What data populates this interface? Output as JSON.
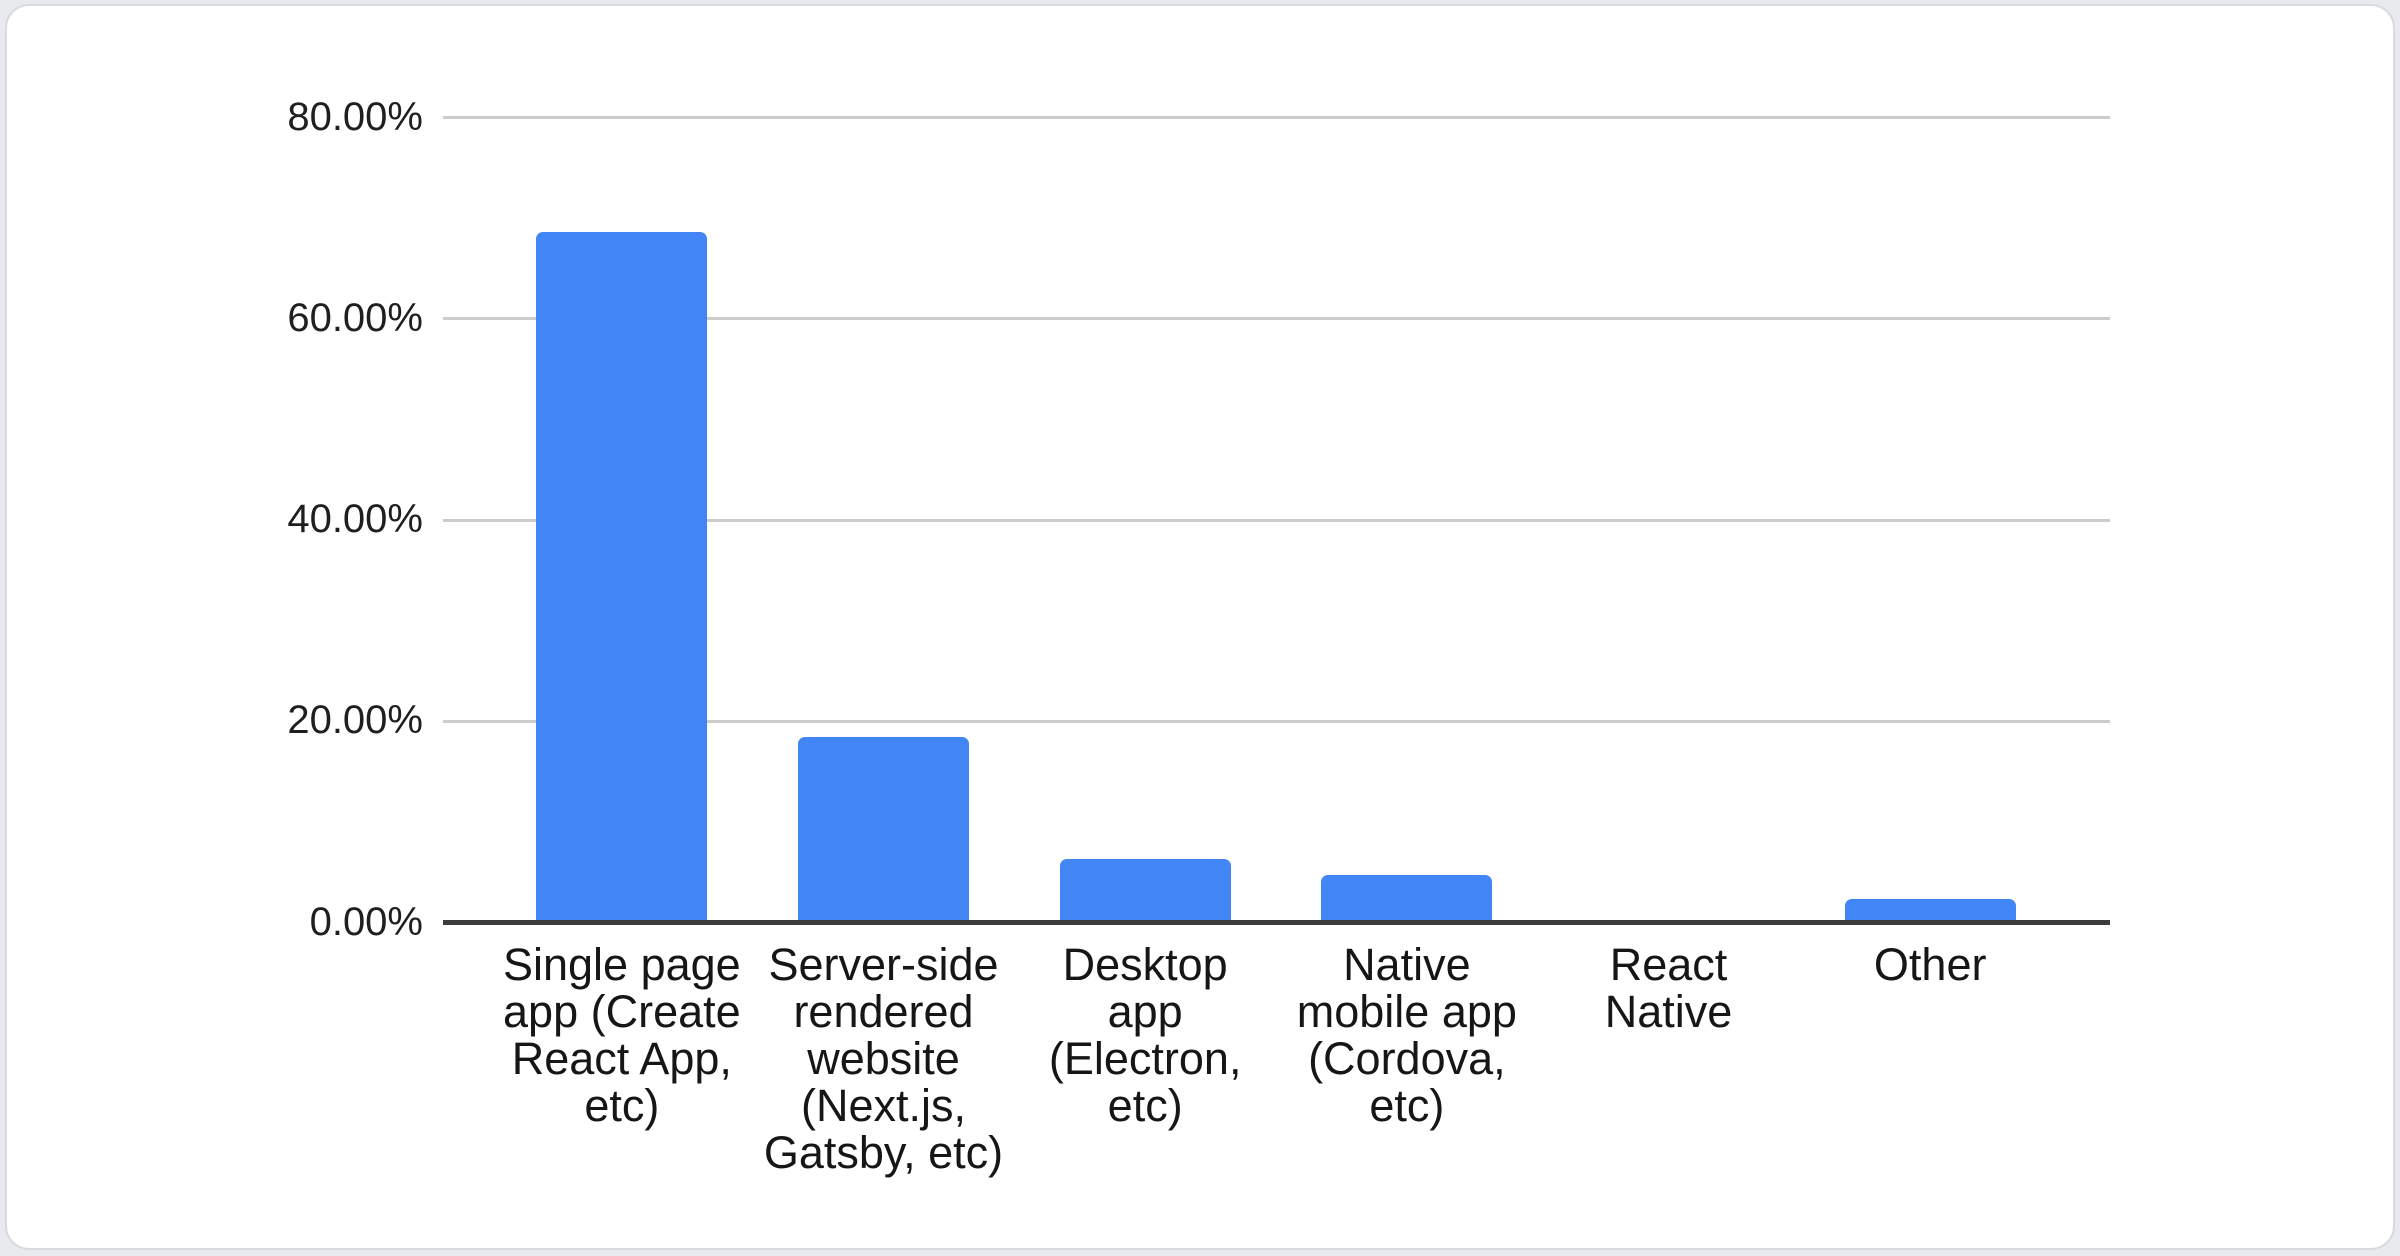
{
  "page": {
    "background": "#e8eaee",
    "card_background": "#ffffff",
    "card_border": "#d7dade"
  },
  "chart_data": {
    "type": "bar",
    "title": "",
    "xlabel": "",
    "ylabel": "",
    "legend": "none",
    "grid": true,
    "categories": [
      "Single page app (Create React App, etc)",
      "Server-side rendered website (Next.js, Gatsby, etc)",
      "Desktop app (Electron, etc)",
      "Native mobile app (Cordova, etc)",
      "React Native",
      "Other"
    ],
    "categories_display": [
      "Single page\napp (Create\nReact App,\netc)",
      "Server-side\nrendered\nwebsite\n(Next.js,\nGatsby, etc)",
      "Desktop\napp\n(Electron,\netc)",
      "Native\nmobile app\n(Cordova,\netc)",
      "React\nNative",
      "Other"
    ],
    "values": [
      68.6,
      18.4,
      6.3,
      4.7,
      0,
      2.3
    ],
    "unit": "%",
    "y_axis": {
      "range": [
        0,
        82
      ],
      "tick_format": "0.00%",
      "ticks": [
        {
          "value": 0,
          "label": "0.00%"
        },
        {
          "value": 20,
          "label": "20.00%"
        },
        {
          "value": 40,
          "label": "40.00%"
        },
        {
          "value": 60,
          "label": "60.00%"
        },
        {
          "value": 80,
          "label": "80.00%"
        }
      ]
    },
    "colors": {
      "bar": "#4285f4",
      "gridline": "#cccccc",
      "axis_line": "#3c3c3c",
      "tick_text": "#1f1f1f",
      "category_text": "#161616"
    }
  }
}
